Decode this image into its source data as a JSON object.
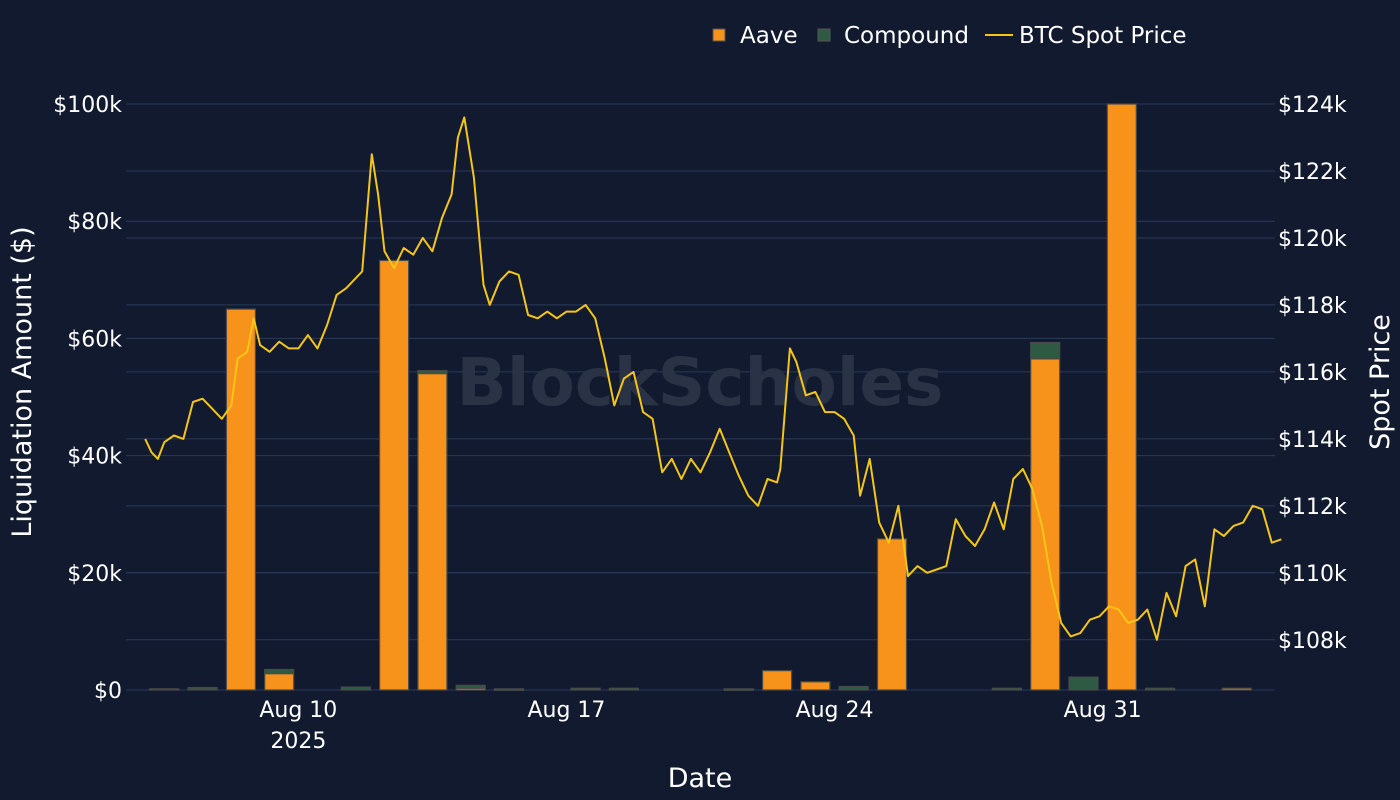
{
  "chart_data": {
    "type": "bar",
    "title": "",
    "xlabel": "Date",
    "ylabel": "Liquidation Amount ($)",
    "y2label": "Spot Price",
    "ylim": [
      0,
      100000
    ],
    "y2lim": [
      106500,
      124000
    ],
    "xlim": [
      "2025-08-05T12:00",
      "2025-09-04T12:00"
    ],
    "x_ticks": [
      {
        "date": "2025-08-10",
        "label": "Aug 10",
        "sublabel": "2025"
      },
      {
        "date": "2025-08-17",
        "label": "Aug 17",
        "sublabel": ""
      },
      {
        "date": "2025-08-24",
        "label": "Aug 24",
        "sublabel": ""
      },
      {
        "date": "2025-08-31",
        "label": "Aug 31",
        "sublabel": ""
      }
    ],
    "y_ticks": [
      {
        "value": 0,
        "label": "$0"
      },
      {
        "value": 20000,
        "label": "$20k"
      },
      {
        "value": 40000,
        "label": "$40k"
      },
      {
        "value": 60000,
        "label": "$60k"
      },
      {
        "value": 80000,
        "label": "$80k"
      },
      {
        "value": 100000,
        "label": "$100k"
      }
    ],
    "y2_ticks": [
      {
        "value": 108000,
        "label": "$108k"
      },
      {
        "value": 110000,
        "label": "$110k"
      },
      {
        "value": 112000,
        "label": "$112k"
      },
      {
        "value": 114000,
        "label": "$114k"
      },
      {
        "value": 116000,
        "label": "$116k"
      },
      {
        "value": 118000,
        "label": "$118k"
      },
      {
        "value": 120000,
        "label": "$120k"
      },
      {
        "value": 122000,
        "label": "$122k"
      },
      {
        "value": 124000,
        "label": "$124k"
      }
    ],
    "grid": true,
    "legend_position": "top-right",
    "colors": {
      "aave": "#f7931a",
      "compound": "#2e5a43",
      "btc": "#f5c518",
      "background": "#111a2e",
      "grid": "#2b3a5c"
    },
    "categories": [
      "2025-08-06",
      "2025-08-07",
      "2025-08-08",
      "2025-08-09",
      "2025-08-10",
      "2025-08-11",
      "2025-08-12",
      "2025-08-13",
      "2025-08-14",
      "2025-08-15",
      "2025-08-16",
      "2025-08-17",
      "2025-08-18",
      "2025-08-19",
      "2025-08-20",
      "2025-08-21",
      "2025-08-22",
      "2025-08-23",
      "2025-08-24",
      "2025-08-25",
      "2025-08-26",
      "2025-08-27",
      "2025-08-28",
      "2025-08-29",
      "2025-08-30",
      "2025-08-31",
      "2025-09-01",
      "2025-09-02",
      "2025-09-03"
    ],
    "series": [
      {
        "name": "Aave",
        "kind": "bar",
        "values": [
          200,
          100,
          65000,
          2800,
          0,
          0,
          73300,
          54000,
          300,
          0,
          0,
          0,
          0,
          0,
          0,
          0,
          3300,
          1400,
          0,
          25800,
          0,
          0,
          0,
          56500,
          0,
          100000,
          0,
          0,
          300
        ]
      },
      {
        "name": "Compound",
        "kind": "bar",
        "values": [
          0,
          300,
          0,
          700,
          0,
          500,
          0,
          500,
          500,
          200,
          0,
          300,
          300,
          0,
          0,
          200,
          0,
          0,
          600,
          0,
          0,
          0,
          300,
          2800,
          2200,
          0,
          300,
          0,
          0
        ]
      },
      {
        "name": "BTC Spot Price",
        "kind": "line",
        "axis": "right",
        "points": [
          [
            "2025-08-06T00:00",
            114000
          ],
          [
            "2025-08-06T04:00",
            113600
          ],
          [
            "2025-08-06T08:00",
            113400
          ],
          [
            "2025-08-06T12:00",
            113900
          ],
          [
            "2025-08-06T18:00",
            114100
          ],
          [
            "2025-08-07T00:00",
            114000
          ],
          [
            "2025-08-07T06:00",
            115100
          ],
          [
            "2025-08-07T12:00",
            115200
          ],
          [
            "2025-08-07T18:00",
            114900
          ],
          [
            "2025-08-08T00:00",
            114600
          ],
          [
            "2025-08-08T06:00",
            115000
          ],
          [
            "2025-08-08T10:00",
            116400
          ],
          [
            "2025-08-08T16:00",
            116600
          ],
          [
            "2025-08-08T20:00",
            117600
          ],
          [
            "2025-08-09T00:00",
            116800
          ],
          [
            "2025-08-09T06:00",
            116600
          ],
          [
            "2025-08-09T12:00",
            116900
          ],
          [
            "2025-08-09T18:00",
            116700
          ],
          [
            "2025-08-10T00:00",
            116700
          ],
          [
            "2025-08-10T06:00",
            117100
          ],
          [
            "2025-08-10T12:00",
            116700
          ],
          [
            "2025-08-10T18:00",
            117400
          ],
          [
            "2025-08-11T00:00",
            118300
          ],
          [
            "2025-08-11T06:00",
            118500
          ],
          [
            "2025-08-11T12:00",
            118800
          ],
          [
            "2025-08-11T16:00",
            119000
          ],
          [
            "2025-08-11T22:00",
            122500
          ],
          [
            "2025-08-12T02:00",
            121300
          ],
          [
            "2025-08-12T06:00",
            119600
          ],
          [
            "2025-08-12T12:00",
            119100
          ],
          [
            "2025-08-12T18:00",
            119700
          ],
          [
            "2025-08-13T00:00",
            119500
          ],
          [
            "2025-08-13T06:00",
            120000
          ],
          [
            "2025-08-13T12:00",
            119600
          ],
          [
            "2025-08-13T18:00",
            120600
          ],
          [
            "2025-08-14T00:00",
            121300
          ],
          [
            "2025-08-14T04:00",
            123000
          ],
          [
            "2025-08-14T08:00",
            123600
          ],
          [
            "2025-08-14T14:00",
            121800
          ],
          [
            "2025-08-14T20:00",
            118600
          ],
          [
            "2025-08-15T00:00",
            118000
          ],
          [
            "2025-08-15T06:00",
            118700
          ],
          [
            "2025-08-15T12:00",
            119000
          ],
          [
            "2025-08-15T18:00",
            118900
          ],
          [
            "2025-08-16T00:00",
            117700
          ],
          [
            "2025-08-16T06:00",
            117600
          ],
          [
            "2025-08-16T12:00",
            117800
          ],
          [
            "2025-08-16T18:00",
            117600
          ],
          [
            "2025-08-17T00:00",
            117800
          ],
          [
            "2025-08-17T06:00",
            117800
          ],
          [
            "2025-08-17T12:00",
            118000
          ],
          [
            "2025-08-17T18:00",
            117600
          ],
          [
            "2025-08-18T00:00",
            116400
          ],
          [
            "2025-08-18T06:00",
            115000
          ],
          [
            "2025-08-18T12:00",
            115800
          ],
          [
            "2025-08-18T18:00",
            116000
          ],
          [
            "2025-08-19T00:00",
            114800
          ],
          [
            "2025-08-19T06:00",
            114600
          ],
          [
            "2025-08-19T12:00",
            113000
          ],
          [
            "2025-08-19T18:00",
            113400
          ],
          [
            "2025-08-20T00:00",
            112800
          ],
          [
            "2025-08-20T06:00",
            113400
          ],
          [
            "2025-08-20T12:00",
            113000
          ],
          [
            "2025-08-20T18:00",
            113600
          ],
          [
            "2025-08-21T00:00",
            114300
          ],
          [
            "2025-08-21T06:00",
            113600
          ],
          [
            "2025-08-21T12:00",
            112900
          ],
          [
            "2025-08-21T18:00",
            112300
          ],
          [
            "2025-08-22T00:00",
            112000
          ],
          [
            "2025-08-22T06:00",
            112800
          ],
          [
            "2025-08-22T12:00",
            112700
          ],
          [
            "2025-08-22T14:00",
            113100
          ],
          [
            "2025-08-22T20:00",
            116700
          ],
          [
            "2025-08-23T00:00",
            116300
          ],
          [
            "2025-08-23T06:00",
            115300
          ],
          [
            "2025-08-23T12:00",
            115400
          ],
          [
            "2025-08-23T18:00",
            114800
          ],
          [
            "2025-08-24T00:00",
            114800
          ],
          [
            "2025-08-24T06:00",
            114600
          ],
          [
            "2025-08-24T12:00",
            114100
          ],
          [
            "2025-08-24T16:00",
            112300
          ],
          [
            "2025-08-24T22:00",
            113400
          ],
          [
            "2025-08-25T04:00",
            111500
          ],
          [
            "2025-08-25T10:00",
            110900
          ],
          [
            "2025-08-25T16:00",
            112000
          ],
          [
            "2025-08-25T22:00",
            109900
          ],
          [
            "2025-08-26T04:00",
            110200
          ],
          [
            "2025-08-26T10:00",
            110000
          ],
          [
            "2025-08-26T16:00",
            110100
          ],
          [
            "2025-08-26T22:00",
            110200
          ],
          [
            "2025-08-27T04:00",
            111600
          ],
          [
            "2025-08-27T10:00",
            111100
          ],
          [
            "2025-08-27T16:00",
            110800
          ],
          [
            "2025-08-27T22:00",
            111300
          ],
          [
            "2025-08-28T04:00",
            112100
          ],
          [
            "2025-08-28T10:00",
            111300
          ],
          [
            "2025-08-28T16:00",
            112800
          ],
          [
            "2025-08-28T22:00",
            113100
          ],
          [
            "2025-08-29T04:00",
            112500
          ],
          [
            "2025-08-29T10:00",
            111400
          ],
          [
            "2025-08-29T16:00",
            109700
          ],
          [
            "2025-08-29T22:00",
            108500
          ],
          [
            "2025-08-30T04:00",
            108100
          ],
          [
            "2025-08-30T10:00",
            108200
          ],
          [
            "2025-08-30T16:00",
            108600
          ],
          [
            "2025-08-30T22:00",
            108700
          ],
          [
            "2025-08-31T04:00",
            109000
          ],
          [
            "2025-08-31T10:00",
            108900
          ],
          [
            "2025-08-31T16:00",
            108500
          ],
          [
            "2025-08-31T22:00",
            108600
          ],
          [
            "2025-09-01T04:00",
            108900
          ],
          [
            "2025-09-01T10:00",
            108000
          ],
          [
            "2025-09-01T16:00",
            109400
          ],
          [
            "2025-09-01T22:00",
            108700
          ],
          [
            "2025-09-02T04:00",
            110200
          ],
          [
            "2025-09-02T10:00",
            110400
          ],
          [
            "2025-09-02T16:00",
            109000
          ],
          [
            "2025-09-02T22:00",
            111300
          ],
          [
            "2025-09-03T04:00",
            111100
          ],
          [
            "2025-09-03T10:00",
            111400
          ],
          [
            "2025-09-03T16:00",
            111500
          ],
          [
            "2025-09-03T22:00",
            112000
          ],
          [
            "2025-09-04T04:00",
            111900
          ],
          [
            "2025-09-04T10:00",
            110900
          ],
          [
            "2025-09-04T16:00",
            111000
          ]
        ]
      }
    ]
  },
  "watermark": "BlockScholes"
}
